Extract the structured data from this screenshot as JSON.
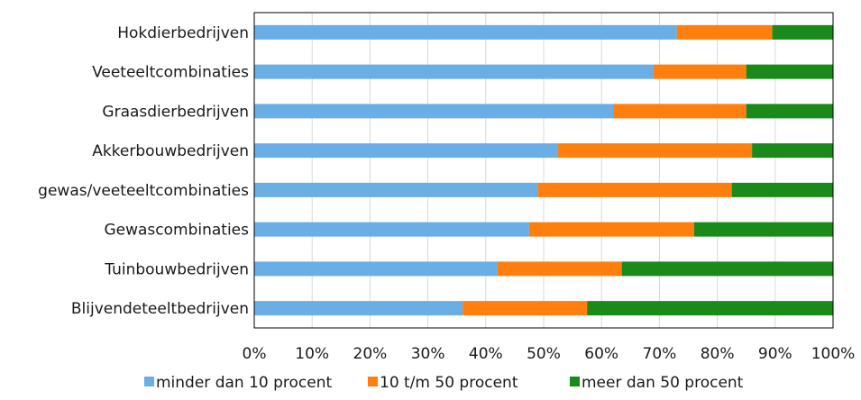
{
  "chart_data": {
    "type": "bar",
    "orientation": "horizontal",
    "stacked": true,
    "percent": true,
    "categories": [
      "Hokdierbedrijven",
      "Veeteeltcombinaties",
      "Graasdierbedrijven",
      "Akkerbouwbedrijven",
      "gewas/veeteeltcombinaties",
      "Gewascombinaties",
      "Tuinbouwbedrijven",
      "Blijvendeteeltbedrijven"
    ],
    "series": [
      {
        "name": "minder dan 10 procent",
        "color": "#6aaee6",
        "values": [
          73,
          69,
          62,
          52.5,
          49,
          47.5,
          42,
          36
        ]
      },
      {
        "name": "10 t/m 50 procent",
        "color": "#ff7f0e",
        "values": [
          16.5,
          16,
          23,
          33.5,
          33.5,
          28.5,
          21.5,
          21.5
        ]
      },
      {
        "name": "meer dan 50 procent",
        "color": "#1a8a1a",
        "values": [
          10.5,
          15,
          15,
          14,
          17.5,
          24,
          36.5,
          42.5
        ]
      }
    ],
    "xticks": [
      "0%",
      "10%",
      "20%",
      "30%",
      "40%",
      "50%",
      "60%",
      "70%",
      "80%",
      "90%",
      "100%"
    ],
    "xlim": [
      0,
      100
    ],
    "grid": true,
    "legend_position": "bottom",
    "title": "",
    "xlabel": "",
    "ylabel": ""
  }
}
